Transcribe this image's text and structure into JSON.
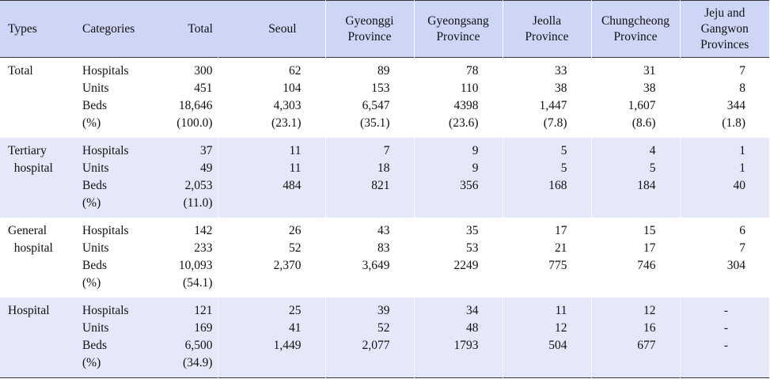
{
  "headers": [
    "Types",
    "Categories",
    "Total",
    "Seoul",
    "Gyeonggi\nProvince",
    "Gyeongsang\nProvince",
    "Jeolla\nProvince",
    "Chungcheong\nProvince",
    "Jeju and\nGangwon\nProvinces"
  ],
  "categories": [
    "Hospitals",
    "Units",
    "Beds",
    "(%)"
  ],
  "groups": [
    {
      "type": "Total",
      "columns": [
        [
          "300",
          "451",
          "18,646",
          "(100.0)"
        ],
        [
          "62",
          "104",
          "4,303",
          "(23.1)"
        ],
        [
          "89",
          "153",
          "6,547",
          "(35.1)"
        ],
        [
          "78",
          "110",
          "4398",
          "(23.6)"
        ],
        [
          "33",
          "38",
          "1,447",
          "(7.8)"
        ],
        [
          "31",
          "38",
          "1,607",
          "(8.6)"
        ],
        [
          "7",
          "8",
          "344",
          "(1.8)"
        ]
      ]
    },
    {
      "type": "Tertiary\n  hospital",
      "columns": [
        [
          "37",
          "49",
          "2,053",
          "(11.0)"
        ],
        [
          "11",
          "11",
          "484",
          ""
        ],
        [
          "7",
          "18",
          "821",
          ""
        ],
        [
          "9",
          "9",
          "356",
          ""
        ],
        [
          "5",
          "5",
          "168",
          ""
        ],
        [
          "4",
          "5",
          "184",
          ""
        ],
        [
          "1",
          "1",
          "40",
          ""
        ]
      ]
    },
    {
      "type": "General\n  hospital",
      "columns": [
        [
          "142",
          "233",
          "10,093",
          "(54.1)"
        ],
        [
          "26",
          "52",
          "2,370",
          ""
        ],
        [
          "43",
          "83",
          "3,649",
          ""
        ],
        [
          "35",
          "53",
          "2249",
          ""
        ],
        [
          "17",
          "21",
          "775",
          ""
        ],
        [
          "15",
          "17",
          "746",
          ""
        ],
        [
          "6",
          "7",
          "304",
          ""
        ]
      ]
    },
    {
      "type": "Hospital",
      "columns": [
        [
          "121",
          "169",
          "6,500",
          "(34.9)"
        ],
        [
          "25",
          "41",
          "1,449",
          ""
        ],
        [
          "39",
          "52",
          "2,077",
          ""
        ],
        [
          "34",
          "48",
          "1793",
          ""
        ],
        [
          "11",
          "12",
          "504",
          ""
        ],
        [
          "12",
          "16",
          "677",
          ""
        ],
        [
          "-",
          "-",
          "-",
          ""
        ]
      ]
    }
  ]
}
